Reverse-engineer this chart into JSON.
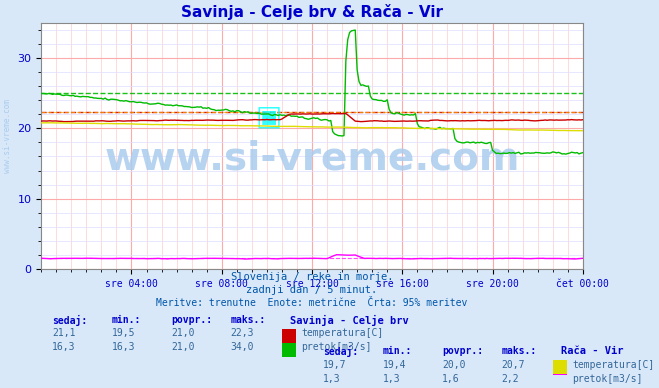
{
  "title": "Savinja - Celje brv & Rača - Vir",
  "title_color": "#0000cc",
  "bg_color": "#d8e8f8",
  "plot_bg_color": "#ffffff",
  "grid_color_major": "#ffaaaa",
  "grid_color_minor": "#ddddff",
  "xlabel_color": "#0000cc",
  "ylabel_color": "#0000cc",
  "x_ticks_labels": [
    "sre 04:00",
    "sre 08:00",
    "sre 12:00",
    "sre 16:00",
    "sre 20:00",
    "čet 00:00"
  ],
  "x_ticks_pos": [
    48,
    96,
    144,
    192,
    240,
    288
  ],
  "y_ticks": [
    0,
    10,
    20,
    30
  ],
  "ylim": [
    0,
    35
  ],
  "xlim": [
    0,
    288
  ],
  "subtitle1": "Slovenija / reke in morje.",
  "subtitle2": "zadnji dan / 5 minut.",
  "subtitle3": "Meritve: trenutne  Enote: metrične  Črta: 95% meritev",
  "subtitle_color": "#0055aa",
  "watermark": "www.si-vreme.com",
  "watermark_color": "#aaccee",
  "watermark_fontsize": 28,
  "left_label": "www.si-vreme.com",
  "left_label_color": "#aaccee",
  "table_header_color": "#0000cc",
  "table_value_color": "#336699",
  "station1_name": "Savinja - Celje brv",
  "station2_name": "Rača - Vir",
  "s1_temp_color": "#cc0000",
  "s1_flow_color": "#00bb00",
  "s2_temp_color": "#dddd00",
  "s2_flow_color": "#ff00ff",
  "s1_temp_avg": 22.3,
  "s1_flow_avg": 25.0,
  "s2_temp_avg": 22.3,
  "s2_flow_avg": 1.6,
  "dashed_line_s1_temp": 22.3,
  "dashed_line_s1_flow": 25.0,
  "dashed_line_s2_temp": 22.3,
  "dashed_line_s2_flow": 1.6,
  "n_points": 289,
  "seed": 42
}
